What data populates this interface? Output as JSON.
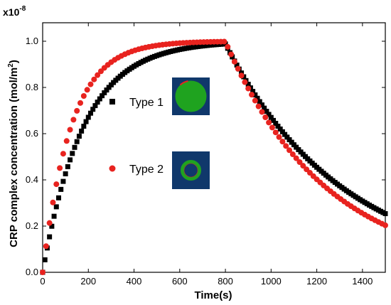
{
  "chart_data": {
    "type": "scatter",
    "title": "",
    "xlabel": "Time(s)",
    "ylabel_main": "CRP complex concentration (mol/m",
    "ylabel_sup": "2",
    "ylabel_close": ")",
    "y_multiplier_base": "x10",
    "y_multiplier_exp": "-8",
    "xlim": [
      0,
      1500
    ],
    "ylim": [
      0,
      1.08
    ],
    "x_ticks": [
      0,
      200,
      400,
      600,
      800,
      1000,
      1200,
      1400
    ],
    "y_ticks": [
      0.0,
      0.2,
      0.4,
      0.6,
      0.8,
      1.0
    ],
    "y_tick_labels": [
      "0.0",
      "0.2",
      "0.4",
      "0.6",
      "0.8",
      "1.0"
    ],
    "legend_position": "center",
    "series": [
      {
        "name": "Type 1",
        "marker": "square",
        "color": "#000000",
        "rise_tau": 180,
        "fall_tau": 515,
        "switch_time": 800,
        "plateau": 1.0,
        "step": 10,
        "x_range": [
          0,
          1500
        ],
        "values_sampled": [
          {
            "x": 0,
            "y": 0.0
          },
          {
            "x": 100,
            "y": 0.43
          },
          {
            "x": 200,
            "y": 0.67
          },
          {
            "x": 400,
            "y": 0.89
          },
          {
            "x": 600,
            "y": 0.97
          },
          {
            "x": 800,
            "y": 1.0
          },
          {
            "x": 1000,
            "y": 0.68
          },
          {
            "x": 1200,
            "y": 0.46
          },
          {
            "x": 1400,
            "y": 0.31
          },
          {
            "x": 1500,
            "y": 0.26
          }
        ]
      },
      {
        "name": "Type 2",
        "marker": "circle",
        "color": "#e8231f",
        "rise_tau": 125,
        "fall_tau": 440,
        "switch_time": 800,
        "plateau": 1.0,
        "step": 15,
        "x_range": [
          0,
          1500
        ],
        "values_sampled": [
          {
            "x": 0,
            "y": 0.0
          },
          {
            "x": 100,
            "y": 0.55
          },
          {
            "x": 200,
            "y": 0.8
          },
          {
            "x": 400,
            "y": 0.96
          },
          {
            "x": 600,
            "y": 0.99
          },
          {
            "x": 800,
            "y": 1.0
          },
          {
            "x": 1000,
            "y": 0.64
          },
          {
            "x": 1200,
            "y": 0.41
          },
          {
            "x": 1400,
            "y": 0.26
          },
          {
            "x": 1500,
            "y": 0.21
          }
        ]
      }
    ],
    "insets": [
      {
        "name": "type1-inset",
        "description_color_bg": "#10386b",
        "shape": "filled-circle",
        "fill": "#1fa31f",
        "edge": "#e8231f"
      },
      {
        "name": "type2-inset",
        "description_color_bg": "#10386b",
        "shape": "ring",
        "fill": "#1fa31f",
        "edge": "#e8231f"
      }
    ]
  }
}
